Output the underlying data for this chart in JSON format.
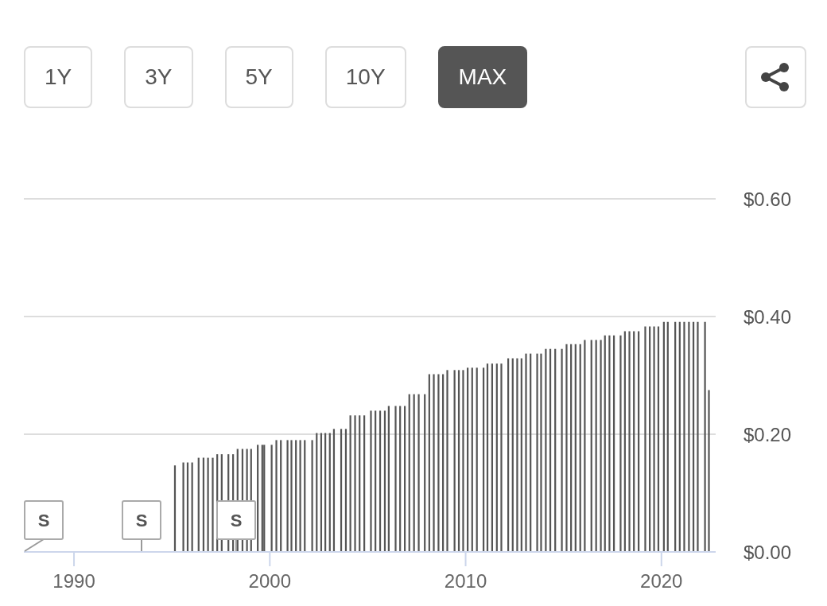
{
  "chart_data": {
    "type": "bar",
    "color": "#555555",
    "x": [
      1995.16,
      1995.59,
      1995.81,
      1996.04,
      1996.37,
      1996.62,
      1996.85,
      1997.09,
      1997.32,
      1997.55,
      1997.89,
      1998.13,
      1998.36,
      1998.61,
      1998.84,
      1999.05,
      1999.39,
      1999.62,
      1999.72,
      2000.1,
      2000.34,
      2000.57,
      2000.91,
      2001.11,
      2001.34,
      2001.56,
      2001.79,
      2002.17,
      2002.4,
      2002.63,
      2002.84,
      2003.07,
      2003.28,
      2003.65,
      2003.89,
      2004.12,
      2004.36,
      2004.59,
      2004.83,
      2005.17,
      2005.4,
      2005.64,
      2005.88,
      2006.08,
      2006.43,
      2006.66,
      2006.9,
      2007.13,
      2007.37,
      2007.61,
      2007.92,
      2008.15,
      2008.38,
      2008.62,
      2008.85,
      2009.07,
      2009.44,
      2009.66,
      2009.88,
      2010.11,
      2010.34,
      2010.58,
      2010.92,
      2011.12,
      2011.36,
      2011.6,
      2011.83,
      2012.18,
      2012.41,
      2012.64,
      2012.86,
      2013.09,
      2013.32,
      2013.66,
      2013.86,
      2014.1,
      2014.33,
      2014.58,
      2014.92,
      2015.16,
      2015.39,
      2015.62,
      2015.86,
      2016.09,
      2016.43,
      2016.67,
      2016.91,
      2017.12,
      2017.35,
      2017.58,
      2017.92,
      2018.14,
      2018.37,
      2018.6,
      2018.84,
      2019.18,
      2019.41,
      2019.63,
      2019.85,
      2020.13,
      2020.33,
      2020.71,
      2020.94,
      2021.17,
      2021.41,
      2021.64,
      2021.86,
      2022.23,
      2022.43
    ],
    "values": [
      0.147,
      0.152,
      0.152,
      0.152,
      0.16,
      0.16,
      0.16,
      0.16,
      0.166,
      0.166,
      0.166,
      0.166,
      0.175,
      0.175,
      0.175,
      0.175,
      0.182,
      0.182,
      0.182,
      0.182,
      0.19,
      0.19,
      0.19,
      0.19,
      0.19,
      0.19,
      0.19,
      0.19,
      0.202,
      0.202,
      0.202,
      0.202,
      0.209,
      0.209,
      0.209,
      0.232,
      0.232,
      0.232,
      0.232,
      0.24,
      0.24,
      0.24,
      0.24,
      0.248,
      0.248,
      0.248,
      0.248,
      0.268,
      0.268,
      0.268,
      0.268,
      0.302,
      0.302,
      0.302,
      0.302,
      0.309,
      0.309,
      0.309,
      0.309,
      0.313,
      0.313,
      0.313,
      0.313,
      0.32,
      0.32,
      0.32,
      0.32,
      0.329,
      0.329,
      0.329,
      0.329,
      0.337,
      0.337,
      0.337,
      0.337,
      0.345,
      0.345,
      0.345,
      0.345,
      0.353,
      0.353,
      0.353,
      0.353,
      0.36,
      0.36,
      0.36,
      0.36,
      0.368,
      0.368,
      0.368,
      0.368,
      0.375,
      0.375,
      0.375,
      0.375,
      0.383,
      0.383,
      0.383,
      0.383,
      0.391,
      0.391,
      0.391,
      0.391,
      0.391,
      0.391,
      0.391,
      0.391,
      0.391,
      0.275
    ],
    "xlim": [
      1987.44,
      2022.77
    ],
    "xticks": [
      1990,
      2000,
      2010,
      2020
    ],
    "ylim": [
      0,
      0.6
    ],
    "yticks": [
      {
        "value": 0,
        "label": "$0.00"
      },
      {
        "value": 0.2,
        "label": "$0.20"
      },
      {
        "value": 0.4,
        "label": "$0.40"
      },
      {
        "value": 0.6,
        "label": "$0.60"
      }
    ],
    "grid": "y",
    "annotations": [
      "1Y",
      "3Y",
      "5Y",
      "10Y",
      "MAX",
      "S",
      "S",
      "S"
    ]
  }
}
